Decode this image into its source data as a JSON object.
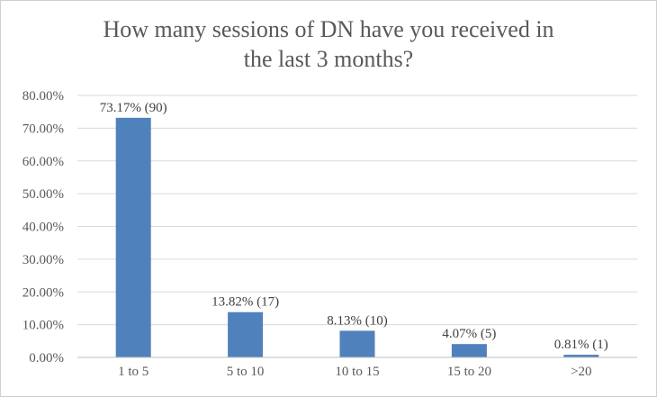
{
  "chart_data": {
    "type": "bar",
    "title_lines": [
      "How many sessions of DN have you received in",
      "the last 3 months?"
    ],
    "categories": [
      "1 to 5",
      "5 to 10",
      "10 to 15",
      "15 to 20",
      ">20"
    ],
    "values": [
      73.17,
      13.82,
      8.13,
      4.07,
      0.81
    ],
    "data_labels": [
      "73.17% (90)",
      "13.82% (17)",
      "8.13% (10)",
      "4.07% (5)",
      "0.81% (1)"
    ],
    "y_ticks": [
      "0.00%",
      "10.00%",
      "20.00%",
      "30.00%",
      "40.00%",
      "50.00%",
      "60.00%",
      "70.00%",
      "80.00%"
    ],
    "ylim": [
      0,
      80
    ],
    "grid": true,
    "legend": "none",
    "bar_color": "#4f81bd",
    "grid_color": "#d9d9d9",
    "axis_color": "#bfbfbf",
    "text_color": "#595959",
    "label_color": "#404040"
  }
}
